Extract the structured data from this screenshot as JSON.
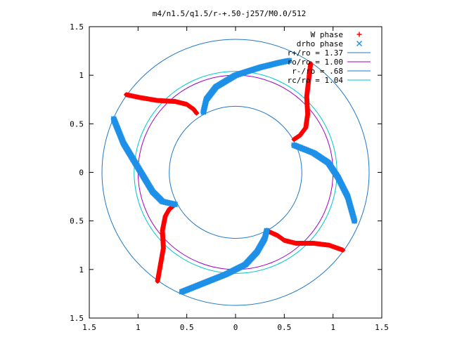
{
  "chart_data": {
    "type": "scatter",
    "title": "m4/n1.5/q1.5/r-+.50-j257/M0.0/512",
    "xlim": [
      -1.5,
      1.5
    ],
    "ylim": [
      -1.5,
      1.5
    ],
    "xticks": [
      -1.5,
      -1,
      -0.5,
      0,
      0.5,
      1,
      1.5
    ],
    "yticks": [
      -1.5,
      -1,
      -0.5,
      0,
      0.5,
      1,
      1.5
    ],
    "xtick_labels": [
      "1.5",
      "1",
      "0.5",
      "0",
      "0.5",
      "1",
      "1.5"
    ],
    "ytick_labels": [
      "1.5",
      "1",
      "0.5",
      "0",
      "0.5",
      "1",
      "1.5"
    ],
    "grid": false,
    "legend_position": "top-right",
    "circles": [
      {
        "name": "r+/ro = 1.37",
        "radius": 1.37,
        "color": "#1f78c8"
      },
      {
        "name": "ro/ro = 1.00",
        "radius": 1.0,
        "color": "#a000c0"
      },
      {
        "name": "r-/ro = .68",
        "radius": 0.68,
        "color": "#1f78c8"
      },
      {
        "name": "rc/ro = 1.04",
        "radius": 1.04,
        "color": "#00c8c8"
      }
    ],
    "series": [
      {
        "name": "W phase",
        "marker": "+",
        "color": "#ff0000",
        "arms": [
          [
            [
              -1.12,
              0.8
            ],
            [
              -0.98,
              0.77
            ],
            [
              -0.8,
              0.74
            ],
            [
              -0.62,
              0.73
            ],
            [
              -0.5,
              0.7
            ],
            [
              -0.43,
              0.65
            ],
            [
              -0.4,
              0.61
            ]
          ],
          [
            [
              0.77,
              1.12
            ],
            [
              0.75,
              0.95
            ],
            [
              0.73,
              0.78
            ],
            [
              0.74,
              0.6
            ],
            [
              0.72,
              0.46
            ],
            [
              0.66,
              0.38
            ],
            [
              0.6,
              0.34
            ]
          ],
          [
            [
              1.1,
              -0.8
            ],
            [
              0.96,
              -0.75
            ],
            [
              0.8,
              -0.73
            ],
            [
              0.62,
              -0.73
            ],
            [
              0.5,
              -0.7
            ],
            [
              0.43,
              -0.65
            ],
            [
              0.32,
              -0.6
            ]
          ],
          [
            [
              -0.8,
              -1.12
            ],
            [
              -0.77,
              -0.95
            ],
            [
              -0.74,
              -0.78
            ],
            [
              -0.75,
              -0.6
            ],
            [
              -0.72,
              -0.45
            ],
            [
              -0.68,
              -0.38
            ],
            [
              -0.62,
              -0.33
            ]
          ]
        ]
      },
      {
        "name": "drho phase",
        "marker": "x",
        "color": "#1e90e8",
        "arms": [
          [
            [
              -1.25,
              0.55
            ],
            [
              -1.15,
              0.3
            ],
            [
              -1.0,
              0.05
            ],
            [
              -0.85,
              -0.2
            ],
            [
              -0.75,
              -0.3
            ],
            [
              -0.62,
              -0.33
            ]
          ],
          [
            [
              -0.33,
              0.62
            ],
            [
              -0.3,
              0.75
            ],
            [
              -0.2,
              0.88
            ],
            [
              0.0,
              1.0
            ],
            [
              0.25,
              1.08
            ],
            [
              0.45,
              1.13
            ],
            [
              0.55,
              1.15
            ]
          ],
          [
            [
              0.6,
              0.28
            ],
            [
              0.8,
              0.2
            ],
            [
              0.95,
              0.1
            ],
            [
              1.05,
              -0.05
            ],
            [
              1.15,
              -0.25
            ],
            [
              1.22,
              -0.5
            ]
          ],
          [
            [
              -0.55,
              -1.23
            ],
            [
              -0.35,
              -1.15
            ],
            [
              -0.1,
              -1.05
            ],
            [
              0.1,
              -0.95
            ],
            [
              0.22,
              -0.82
            ],
            [
              0.3,
              -0.68
            ],
            [
              0.32,
              -0.6
            ]
          ]
        ]
      }
    ]
  }
}
